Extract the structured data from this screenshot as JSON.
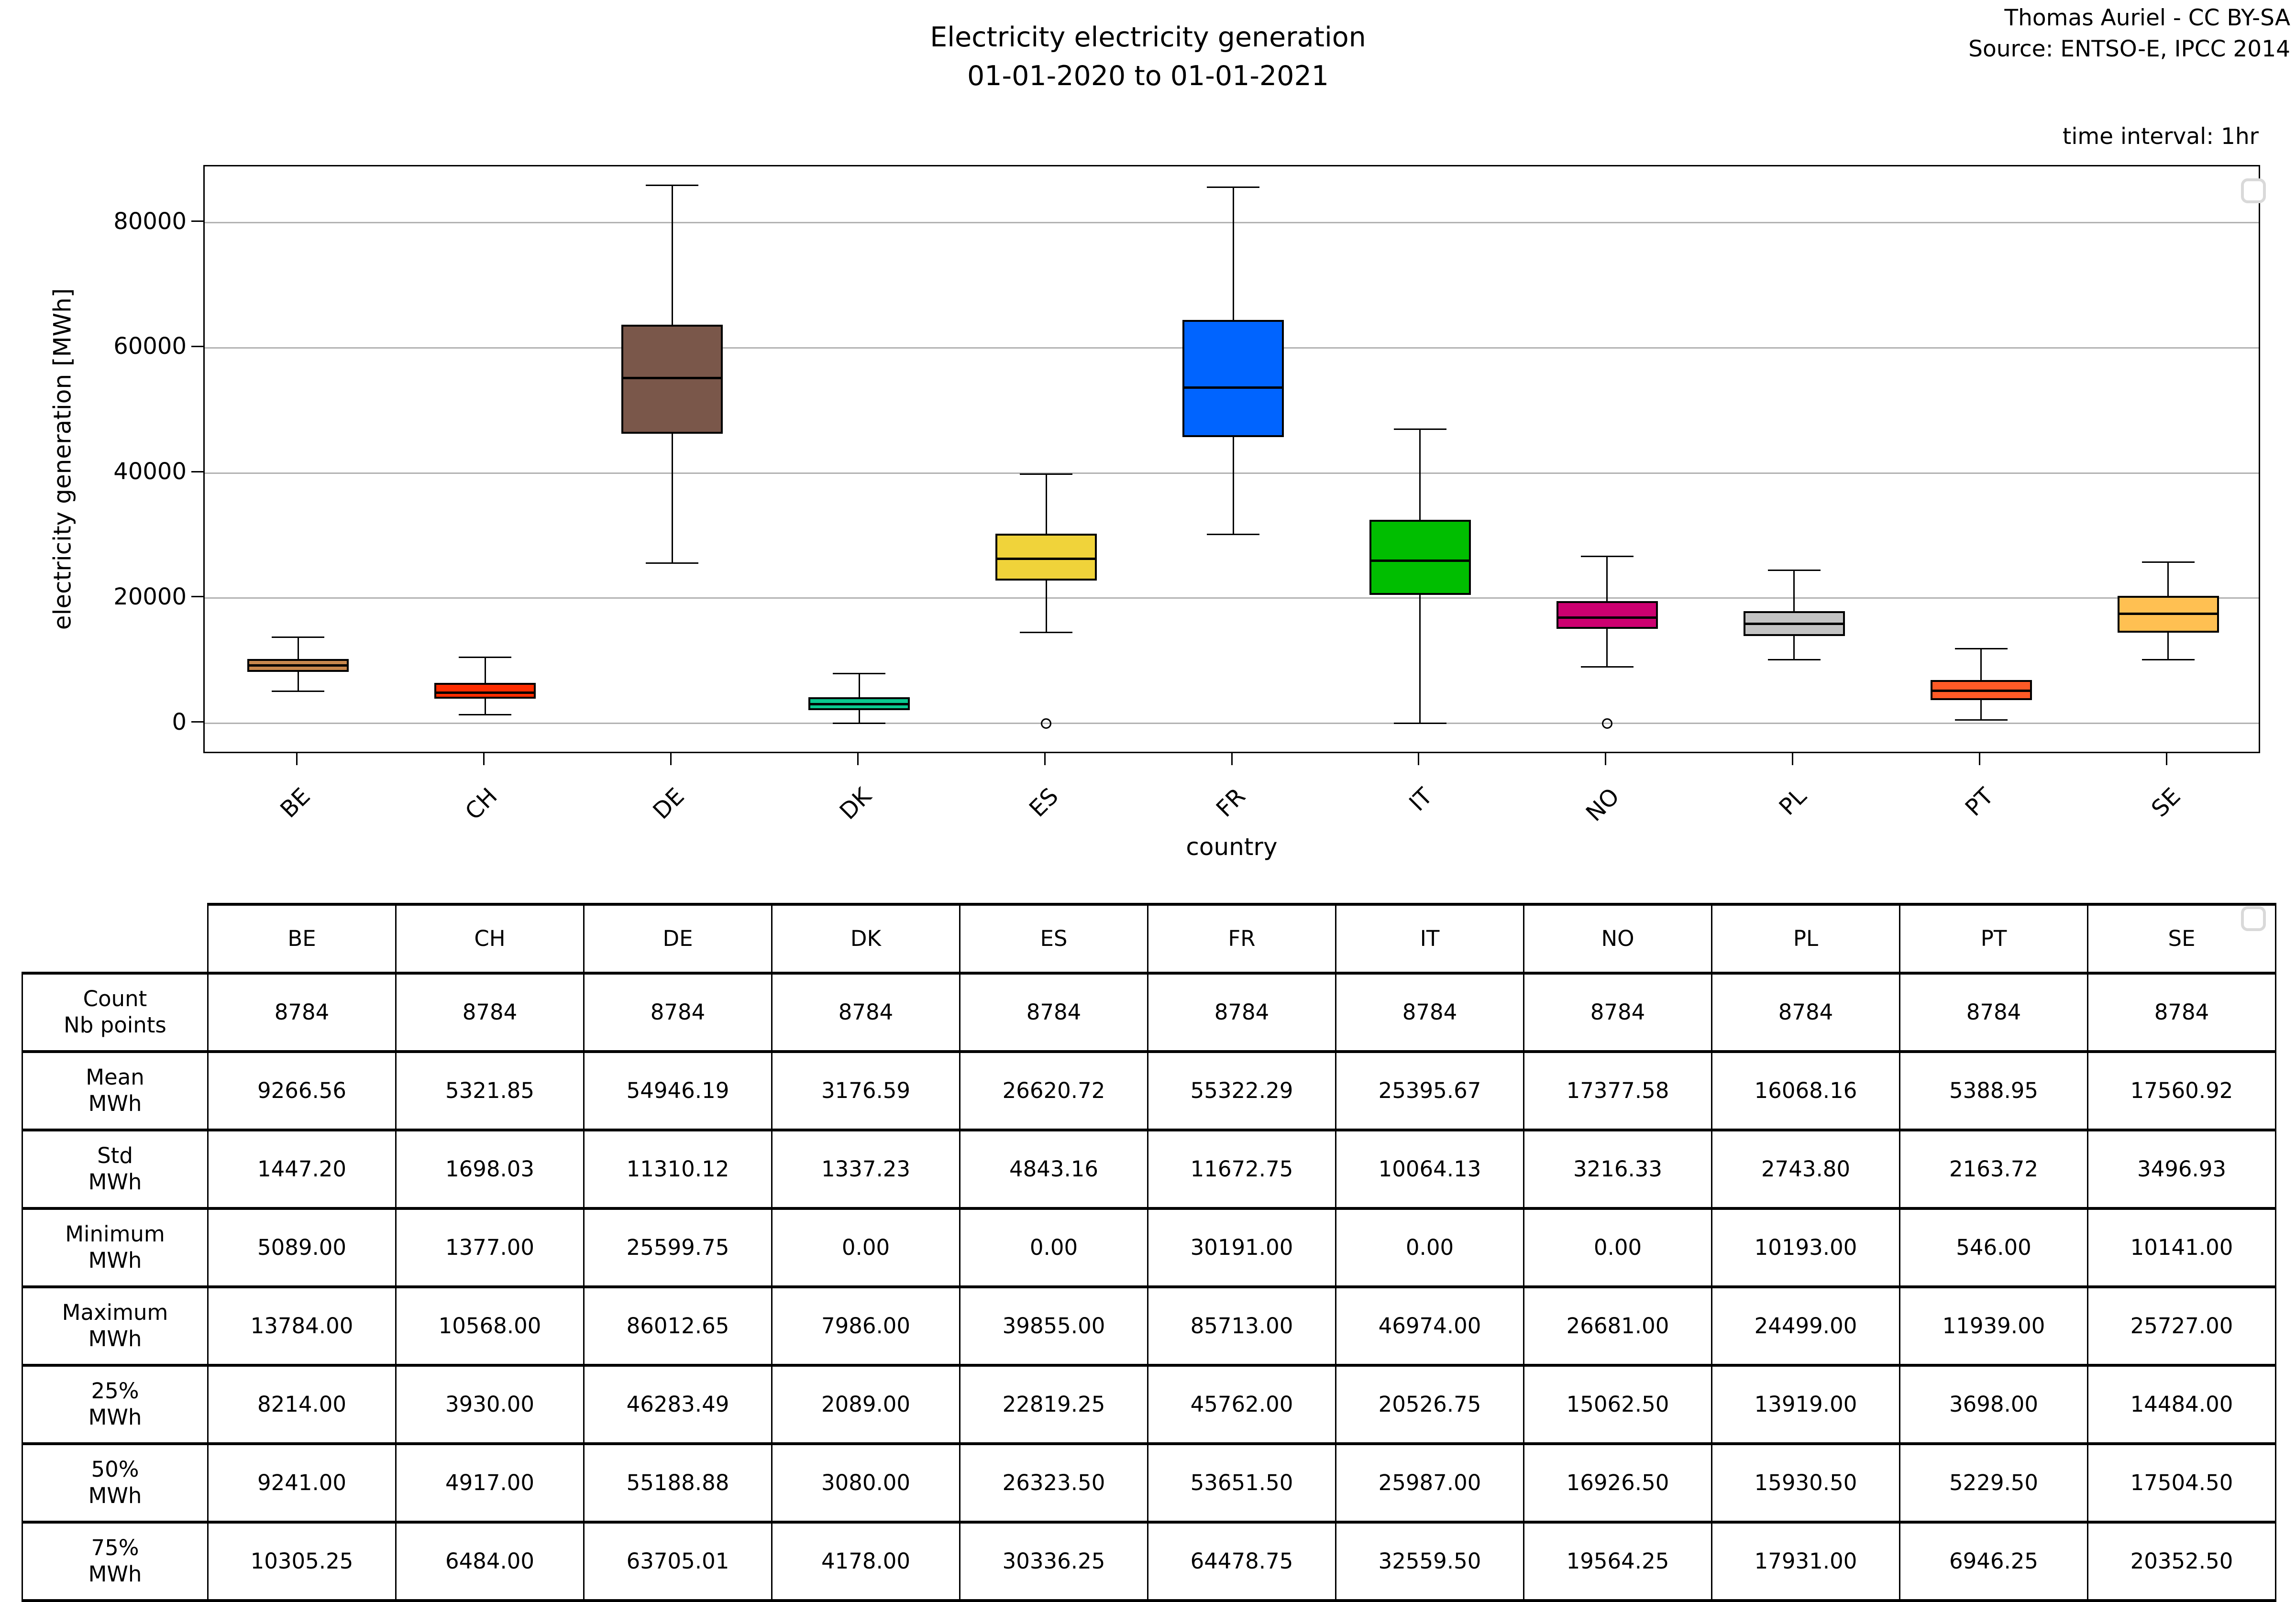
{
  "header": {
    "title_line1": "Electricity electricity generation",
    "title_line2": "01-01-2020 to 01-01-2021",
    "credit_line1": "Thomas Auriel - CC BY-SA",
    "credit_line2": "Source: ENTSO-E, IPCC 2014",
    "time_interval": "time interval: 1hr"
  },
  "chart_data": {
    "type": "boxplot",
    "title": "Electricity electricity generation 01-01-2020 to 01-01-2021",
    "xlabel": "country",
    "ylabel": "electricity generation [MWh]",
    "ylim": [
      -5000,
      89000
    ],
    "yticks": [
      0,
      20000,
      40000,
      60000,
      80000
    ],
    "grid": true,
    "categories": [
      "BE",
      "CH",
      "DE",
      "DK",
      "ES",
      "FR",
      "IT",
      "NO",
      "PL",
      "PT",
      "SE"
    ],
    "series": [
      {
        "country": "BE",
        "color": "#C8874D",
        "whisker_low": 5089,
        "q1": 8214,
        "median": 9241,
        "q3": 10305.25,
        "whisker_high": 13784,
        "outliers": []
      },
      {
        "country": "CH",
        "color": "#FF2D00",
        "whisker_low": 1377,
        "q1": 3930,
        "median": 4917,
        "q3": 6484,
        "whisker_high": 10568,
        "outliers": []
      },
      {
        "country": "DE",
        "color": "#7A574A",
        "whisker_low": 25599.75,
        "q1": 46283.49,
        "median": 55188.88,
        "q3": 63705.01,
        "whisker_high": 86012.65,
        "outliers": []
      },
      {
        "country": "DK",
        "color": "#0AC98F",
        "whisker_low": 0,
        "q1": 2089,
        "median": 3080,
        "q3": 4178,
        "whisker_high": 7986,
        "outliers": []
      },
      {
        "country": "ES",
        "color": "#F0D33A",
        "whisker_low": 14500,
        "q1": 22819.25,
        "median": 26323.5,
        "q3": 30336.25,
        "whisker_high": 39855,
        "outliers": [
          0
        ]
      },
      {
        "country": "FR",
        "color": "#0064FF",
        "whisker_low": 30191,
        "q1": 45762,
        "median": 53651.5,
        "q3": 64478.75,
        "whisker_high": 85713,
        "outliers": []
      },
      {
        "country": "IT",
        "color": "#00BE00",
        "whisker_low": 0,
        "q1": 20526.75,
        "median": 25987,
        "q3": 32559.5,
        "whisker_high": 46974,
        "outliers": []
      },
      {
        "country": "NO",
        "color": "#CC0070",
        "whisker_low": 9000,
        "q1": 15062.5,
        "median": 16926.5,
        "q3": 19564.25,
        "whisker_high": 26681,
        "outliers": [
          0
        ]
      },
      {
        "country": "PL",
        "color": "#C3C3C3",
        "whisker_low": 10193,
        "q1": 13919,
        "median": 15930.5,
        "q3": 17931,
        "whisker_high": 24499,
        "outliers": []
      },
      {
        "country": "PT",
        "color": "#FF5A26",
        "whisker_low": 546,
        "q1": 3698,
        "median": 5229.5,
        "q3": 6946.25,
        "whisker_high": 11939,
        "outliers": []
      },
      {
        "country": "SE",
        "color": "#FFC052",
        "whisker_low": 10141,
        "q1": 14484,
        "median": 17504.5,
        "q3": 20352.5,
        "whisker_high": 25727,
        "outliers": []
      }
    ]
  },
  "table": {
    "columns": [
      "BE",
      "CH",
      "DE",
      "DK",
      "ES",
      "FR",
      "IT",
      "NO",
      "PL",
      "PT",
      "SE"
    ],
    "rows": [
      {
        "label": [
          "Count",
          "Nb points"
        ],
        "values": [
          "8784",
          "8784",
          "8784",
          "8784",
          "8784",
          "8784",
          "8784",
          "8784",
          "8784",
          "8784",
          "8784"
        ]
      },
      {
        "label": [
          "Mean",
          "MWh"
        ],
        "values": [
          "9266.56",
          "5321.85",
          "54946.19",
          "3176.59",
          "26620.72",
          "55322.29",
          "25395.67",
          "17377.58",
          "16068.16",
          "5388.95",
          "17560.92"
        ]
      },
      {
        "label": [
          "Std",
          "MWh"
        ],
        "values": [
          "1447.20",
          "1698.03",
          "11310.12",
          "1337.23",
          "4843.16",
          "11672.75",
          "10064.13",
          "3216.33",
          "2743.80",
          "2163.72",
          "3496.93"
        ]
      },
      {
        "label": [
          "Minimum",
          "MWh"
        ],
        "values": [
          "5089.00",
          "1377.00",
          "25599.75",
          "0.00",
          "0.00",
          "30191.00",
          "0.00",
          "0.00",
          "10193.00",
          "546.00",
          "10141.00"
        ]
      },
      {
        "label": [
          "Maximum",
          "MWh"
        ],
        "values": [
          "13784.00",
          "10568.00",
          "86012.65",
          "7986.00",
          "39855.00",
          "85713.00",
          "46974.00",
          "26681.00",
          "24499.00",
          "11939.00",
          "25727.00"
        ]
      },
      {
        "label": [
          "25%",
          "MWh"
        ],
        "values": [
          "8214.00",
          "3930.00",
          "46283.49",
          "2089.00",
          "22819.25",
          "45762.00",
          "20526.75",
          "15062.50",
          "13919.00",
          "3698.00",
          "14484.00"
        ]
      },
      {
        "label": [
          "50%",
          "MWh"
        ],
        "values": [
          "9241.00",
          "4917.00",
          "55188.88",
          "3080.00",
          "26323.50",
          "53651.50",
          "25987.00",
          "16926.50",
          "15930.50",
          "5229.50",
          "17504.50"
        ]
      },
      {
        "label": [
          "75%",
          "MWh"
        ],
        "values": [
          "10305.25",
          "6484.00",
          "63705.01",
          "4178.00",
          "30336.25",
          "64478.75",
          "32559.50",
          "19564.25",
          "17931.00",
          "6946.25",
          "20352.50"
        ]
      }
    ]
  },
  "colors": {
    "grid": "#b2b2b2",
    "frame": "#000000",
    "handle_border": "#d9d9d9"
  }
}
